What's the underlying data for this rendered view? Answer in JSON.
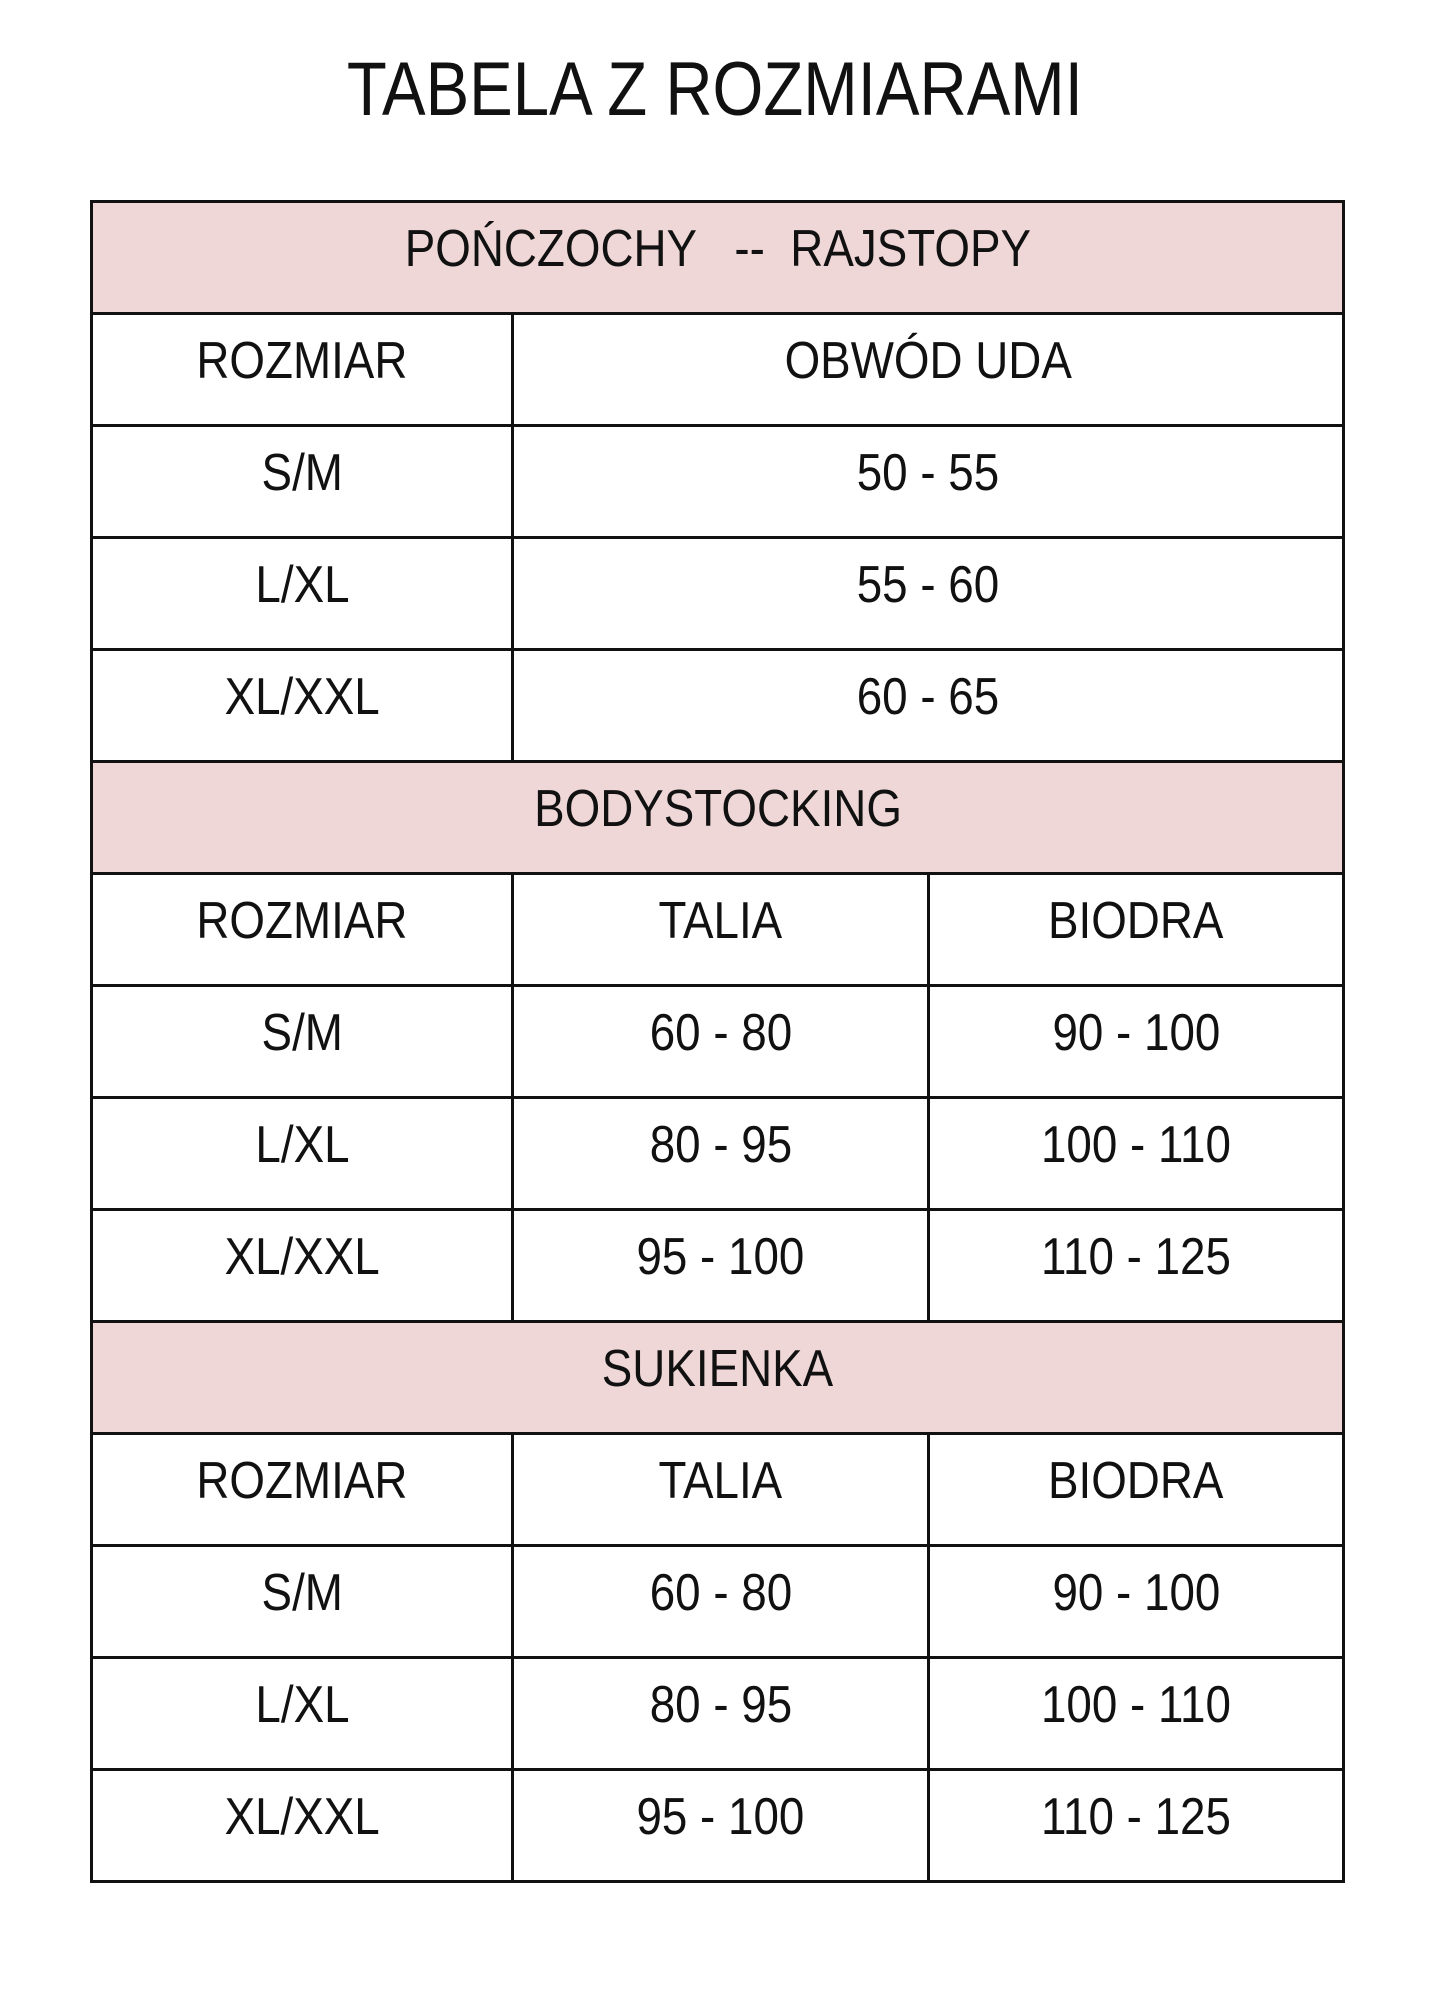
{
  "title": "TABELA Z ROZMIARAMI",
  "accent_color": "#efd7d7",
  "sections": [
    {
      "name": "POŃCZOCHY   --  RAJSTOPY",
      "headers": [
        "ROZMIAR",
        "OBWÓD UDA"
      ],
      "rows": [
        [
          "S/M",
          "50 - 55"
        ],
        [
          "L/XL",
          "55 - 60"
        ],
        [
          "XL/XXL",
          "60 - 65"
        ]
      ]
    },
    {
      "name": "BODYSTOCKING",
      "headers": [
        "ROZMIAR",
        "TALIA",
        "BIODRA"
      ],
      "rows": [
        [
          "S/M",
          "60 - 80",
          "90 - 100"
        ],
        [
          "L/XL",
          "80 - 95",
          "100 - 110"
        ],
        [
          "XL/XXL",
          "95 - 100",
          "110 - 125"
        ]
      ]
    },
    {
      "name": "SUKIENKA",
      "headers": [
        "ROZMIAR",
        "TALIA",
        "BIODRA"
      ],
      "rows": [
        [
          "S/M",
          "60 - 80",
          "90 - 100"
        ],
        [
          "L/XL",
          "80 - 95",
          "100 - 110"
        ],
        [
          "XL/XXL",
          "95 - 100",
          "110 - 125"
        ]
      ]
    }
  ]
}
